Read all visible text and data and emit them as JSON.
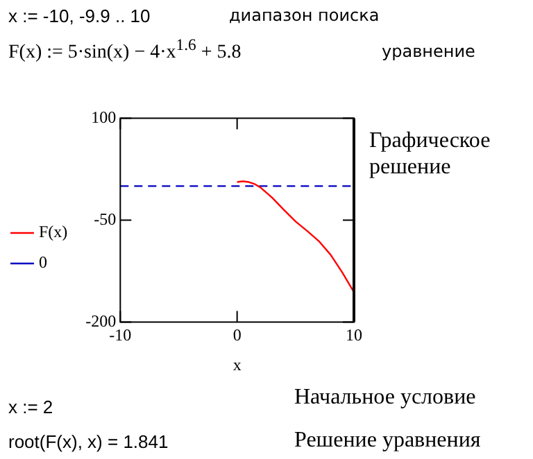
{
  "chart_data": {
    "type": "line",
    "xlabel": "x",
    "xlim": [
      -10,
      10
    ],
    "xticks": [
      -10,
      0,
      10
    ],
    "ylim": [
      -200,
      100
    ],
    "yticks": [
      100,
      -50,
      -200
    ],
    "grid": false,
    "legend": "left",
    "marker": "none",
    "series": [
      {
        "name": "F(x)",
        "color": "#ff0000",
        "line_style": "solid",
        "x": [
          0,
          0.5,
          1,
          1.5,
          2,
          3,
          4,
          5,
          6,
          7,
          8,
          9,
          10
        ],
        "values": [
          6,
          7,
          6,
          3,
          -2,
          -17,
          -35,
          -52,
          -66,
          -81,
          -101,
          -127,
          -156
        ]
      },
      {
        "name": "0",
        "color": "#0000c0",
        "line_style": "dashed",
        "x": [
          -10,
          10
        ],
        "values": [
          0,
          0
        ]
      }
    ],
    "annotations": [
      "x := -10, -9.9 .. 10",
      "диапазон поиска",
      "F(x) := 5·sin(x) − 4·x$^{1.6}$ + 5.8",
      "уравнение",
      "Графическое решение",
      "x := 2",
      "Начальное условие",
      "root(F(x), x) = 1.841",
      "Решение уравнения"
    ]
  }
}
